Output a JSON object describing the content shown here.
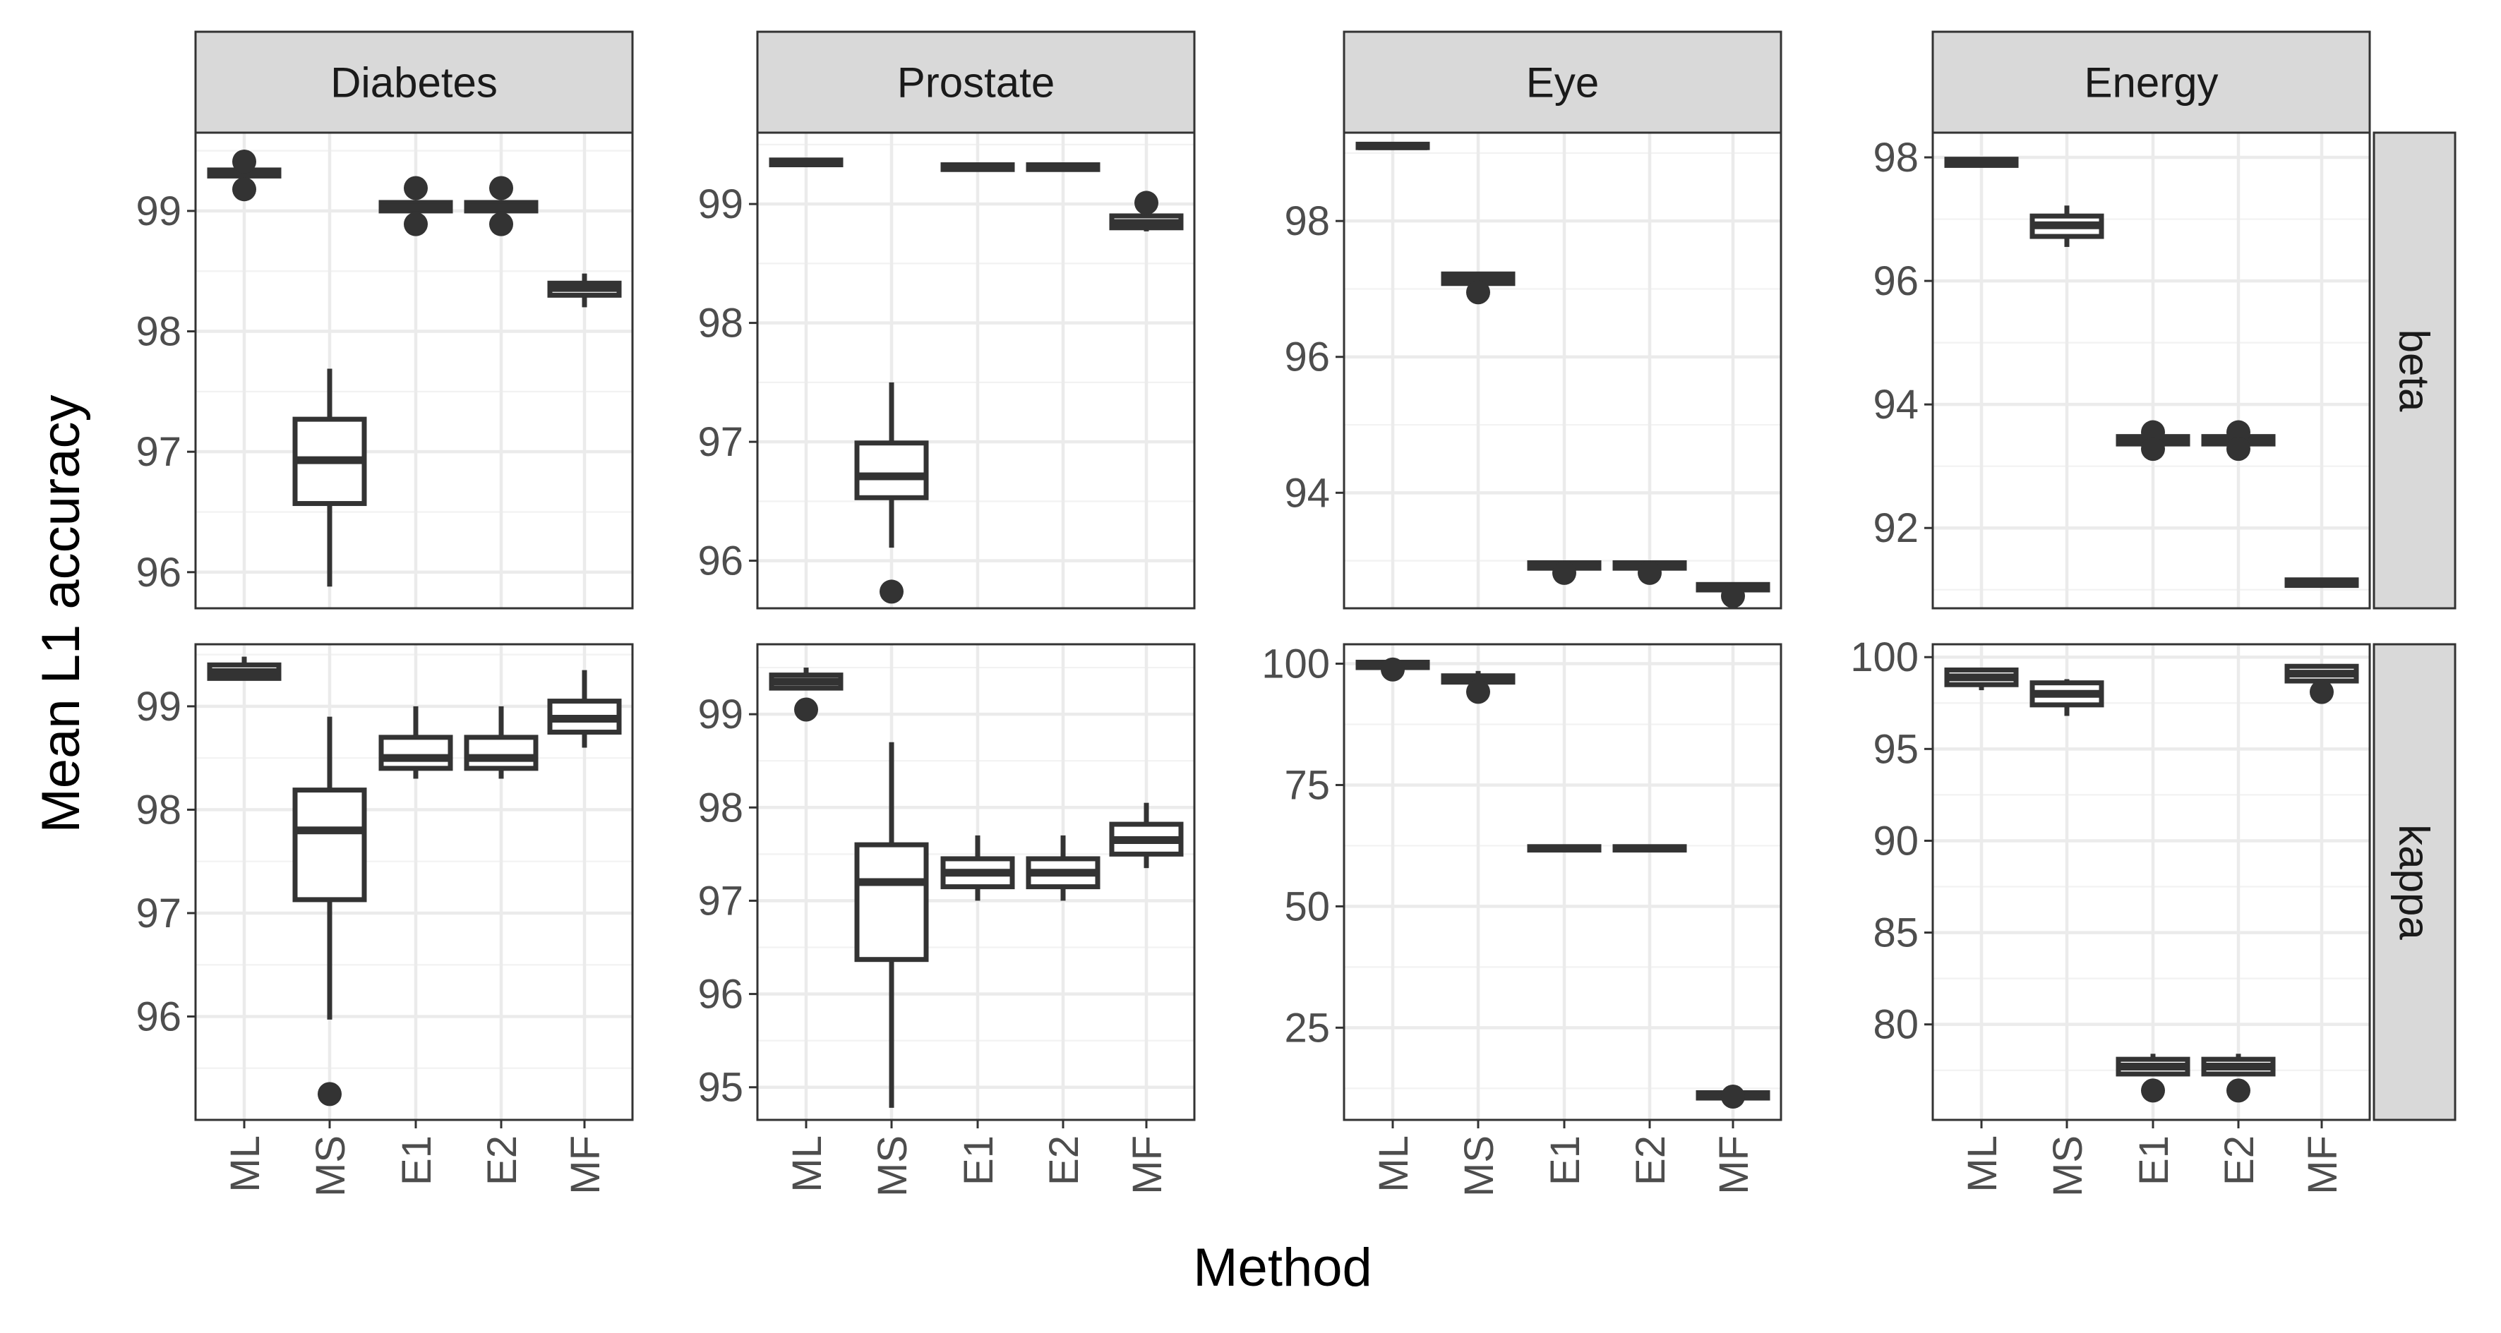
{
  "chart_data": {
    "type": "box",
    "xlabel": "Method",
    "ylabel": "Mean L1 accuracy",
    "categories": [
      "ML",
      "MS",
      "E1",
      "E2",
      "MF"
    ],
    "col_facets": [
      "Diabetes",
      "Prostate",
      "Eye",
      "Energy"
    ],
    "row_facets": [
      "beta",
      "kappa"
    ],
    "panels": [
      {
        "row": "beta",
        "col": "Diabetes",
        "ylim": [
          95.7,
          99.65
        ],
        "yticks": [
          96,
          97,
          98,
          99
        ],
        "boxes": [
          {
            "cat": "ML",
            "lo": 99.29,
            "q1": 99.29,
            "med": 99.32,
            "q3": 99.34,
            "hi": 99.34,
            "outliers": [
              99.41,
              99.18
            ]
          },
          {
            "cat": "MS",
            "lo": 95.88,
            "q1": 96.57,
            "med": 96.93,
            "q3": 97.27,
            "hi": 97.69,
            "outliers": []
          },
          {
            "cat": "E1",
            "lo": 99.0,
            "q1": 99.0,
            "med": 99.03,
            "q3": 99.07,
            "hi": 99.07,
            "outliers": [
              99.19,
              98.89
            ]
          },
          {
            "cat": "E2",
            "lo": 99.0,
            "q1": 99.0,
            "med": 99.03,
            "q3": 99.07,
            "hi": 99.07,
            "outliers": [
              99.19,
              98.89
            ]
          },
          {
            "cat": "MF",
            "lo": 98.2,
            "q1": 98.3,
            "med": 98.36,
            "q3": 98.4,
            "hi": 98.48,
            "outliers": []
          }
        ]
      },
      {
        "row": "beta",
        "col": "Prostate",
        "ylim": [
          95.6,
          99.6
        ],
        "yticks": [
          96,
          97,
          98,
          99
        ],
        "boxes": [
          {
            "cat": "ML",
            "lo": 99.33,
            "q1": 99.33,
            "med": 99.35,
            "q3": 99.37,
            "hi": 99.37,
            "outliers": []
          },
          {
            "cat": "MS",
            "lo": 96.11,
            "q1": 96.53,
            "med": 96.71,
            "q3": 96.99,
            "hi": 97.5,
            "outliers": [
              95.74
            ]
          },
          {
            "cat": "E1",
            "lo": 99.29,
            "q1": 99.29,
            "med": 99.31,
            "q3": 99.33,
            "hi": 99.33,
            "outliers": []
          },
          {
            "cat": "E2",
            "lo": 99.29,
            "q1": 99.29,
            "med": 99.31,
            "q3": 99.33,
            "hi": 99.33,
            "outliers": []
          },
          {
            "cat": "MF",
            "lo": 98.77,
            "q1": 98.8,
            "med": 98.84,
            "q3": 98.9,
            "hi": 98.95,
            "outliers": [
              99.01
            ]
          }
        ]
      },
      {
        "row": "beta",
        "col": "Eye",
        "ylim": [
          92.3,
          99.3
        ],
        "yticks": [
          94,
          96,
          98
        ],
        "boxes": [
          {
            "cat": "ML",
            "lo": 99.08,
            "q1": 99.08,
            "med": 99.1,
            "q3": 99.13,
            "hi": 99.13,
            "outliers": []
          },
          {
            "cat": "MS",
            "lo": 97.08,
            "q1": 97.08,
            "med": 97.15,
            "q3": 97.22,
            "hi": 97.22,
            "outliers": [
              96.95
            ]
          },
          {
            "cat": "E1",
            "lo": 92.89,
            "q1": 92.89,
            "med": 92.93,
            "q3": 92.97,
            "hi": 92.97,
            "outliers": [
              92.82
            ]
          },
          {
            "cat": "E2",
            "lo": 92.89,
            "q1": 92.89,
            "med": 92.93,
            "q3": 92.97,
            "hi": 92.97,
            "outliers": [
              92.82
            ]
          },
          {
            "cat": "MF",
            "lo": 92.57,
            "q1": 92.57,
            "med": 92.61,
            "q3": 92.65,
            "hi": 92.65,
            "outliers": [
              92.48
            ]
          }
        ]
      },
      {
        "row": "beta",
        "col": "Energy",
        "ylim": [
          90.7,
          98.4
        ],
        "yticks": [
          92,
          94,
          96,
          98
        ],
        "boxes": [
          {
            "cat": "ML",
            "lo": 97.87,
            "q1": 97.87,
            "med": 97.92,
            "q3": 97.97,
            "hi": 97.97,
            "outliers": []
          },
          {
            "cat": "MS",
            "lo": 96.55,
            "q1": 96.72,
            "med": 96.9,
            "q3": 97.05,
            "hi": 97.22,
            "outliers": []
          },
          {
            "cat": "E1",
            "lo": 93.36,
            "q1": 93.36,
            "med": 93.43,
            "q3": 93.48,
            "hi": 93.48,
            "outliers": [
              93.55,
              93.28
            ]
          },
          {
            "cat": "E2",
            "lo": 93.36,
            "q1": 93.36,
            "med": 93.43,
            "q3": 93.48,
            "hi": 93.48,
            "outliers": [
              93.55,
              93.28
            ]
          },
          {
            "cat": "MF",
            "lo": 91.07,
            "q1": 91.07,
            "med": 91.12,
            "q3": 91.16,
            "hi": 91.16,
            "outliers": []
          }
        ]
      },
      {
        "row": "kappa",
        "col": "Diabetes",
        "ylim": [
          95.0,
          99.6
        ],
        "yticks": [
          96,
          97,
          98,
          99
        ],
        "boxes": [
          {
            "cat": "ML",
            "lo": 99.27,
            "q1": 99.27,
            "med": 99.33,
            "q3": 99.4,
            "hi": 99.48,
            "outliers": []
          },
          {
            "cat": "MS",
            "lo": 95.97,
            "q1": 97.13,
            "med": 97.8,
            "q3": 98.19,
            "hi": 98.9,
            "outliers": [
              95.25
            ]
          },
          {
            "cat": "E1",
            "lo": 98.3,
            "q1": 98.4,
            "med": 98.5,
            "q3": 98.7,
            "hi": 99.0,
            "outliers": []
          },
          {
            "cat": "E2",
            "lo": 98.3,
            "q1": 98.4,
            "med": 98.5,
            "q3": 98.7,
            "hi": 99.0,
            "outliers": []
          },
          {
            "cat": "MF",
            "lo": 98.6,
            "q1": 98.75,
            "med": 98.88,
            "q3": 99.05,
            "hi": 99.35,
            "outliers": []
          }
        ]
      },
      {
        "row": "kappa",
        "col": "Prostate",
        "ylim": [
          94.65,
          99.75
        ],
        "yticks": [
          95,
          96,
          97,
          98,
          99
        ],
        "boxes": [
          {
            "cat": "ML",
            "lo": 99.28,
            "q1": 99.28,
            "med": 99.35,
            "q3": 99.42,
            "hi": 99.5,
            "outliers": [
              99.05
            ]
          },
          {
            "cat": "MS",
            "lo": 94.78,
            "q1": 96.37,
            "med": 97.2,
            "q3": 97.6,
            "hi": 98.7,
            "outliers": []
          },
          {
            "cat": "E1",
            "lo": 97.0,
            "q1": 97.15,
            "med": 97.3,
            "q3": 97.45,
            "hi": 97.7,
            "outliers": []
          },
          {
            "cat": "E2",
            "lo": 97.0,
            "q1": 97.15,
            "med": 97.3,
            "q3": 97.45,
            "hi": 97.7,
            "outliers": []
          },
          {
            "cat": "MF",
            "lo": 97.35,
            "q1": 97.5,
            "med": 97.65,
            "q3": 97.82,
            "hi": 98.05,
            "outliers": []
          }
        ]
      },
      {
        "row": "kappa",
        "col": "Eye",
        "ylim": [
          6,
          104
        ],
        "yticks": [
          25,
          50,
          75,
          100
        ],
        "boxes": [
          {
            "cat": "ML",
            "lo": 99.2,
            "q1": 99.2,
            "med": 99.7,
            "q3": 100.3,
            "hi": 100.3,
            "outliers": [
              98.8
            ]
          },
          {
            "cat": "MS",
            "lo": 96.2,
            "q1": 96.2,
            "med": 96.8,
            "q3": 97.5,
            "hi": 98.5,
            "outliers": [
              94.2
            ]
          },
          {
            "cat": "E1",
            "lo": 61.6,
            "q1": 61.6,
            "med": 61.9,
            "q3": 62.3,
            "hi": 62.3,
            "outliers": []
          },
          {
            "cat": "E2",
            "lo": 61.6,
            "q1": 61.6,
            "med": 61.9,
            "q3": 62.3,
            "hi": 62.3,
            "outliers": []
          },
          {
            "cat": "MF",
            "lo": 10.5,
            "q1": 10.5,
            "med": 11.0,
            "q3": 11.6,
            "hi": 11.6,
            "outliers": [
              10.8
            ]
          }
        ]
      },
      {
        "row": "kappa",
        "col": "Energy",
        "ylim": [
          74.8,
          100.7
        ],
        "yticks": [
          80,
          85,
          90,
          95,
          100
        ],
        "boxes": [
          {
            "cat": "ML",
            "lo": 98.2,
            "q1": 98.5,
            "med": 98.9,
            "q3": 99.3,
            "hi": 99.3,
            "outliers": []
          },
          {
            "cat": "MS",
            "lo": 96.8,
            "q1": 97.4,
            "med": 98.0,
            "q3": 98.6,
            "hi": 98.8,
            "outliers": []
          },
          {
            "cat": "E1",
            "lo": 77.3,
            "q1": 77.3,
            "med": 77.7,
            "q3": 78.1,
            "hi": 78.4,
            "outliers": [
              76.4
            ]
          },
          {
            "cat": "E2",
            "lo": 77.3,
            "q1": 77.3,
            "med": 77.7,
            "q3": 78.1,
            "hi": 78.4,
            "outliers": [
              76.4
            ]
          },
          {
            "cat": "MF",
            "lo": 98.7,
            "q1": 98.7,
            "med": 99.1,
            "q3": 99.5,
            "hi": 99.5,
            "outliers": [
              98.1
            ]
          }
        ]
      }
    ]
  }
}
